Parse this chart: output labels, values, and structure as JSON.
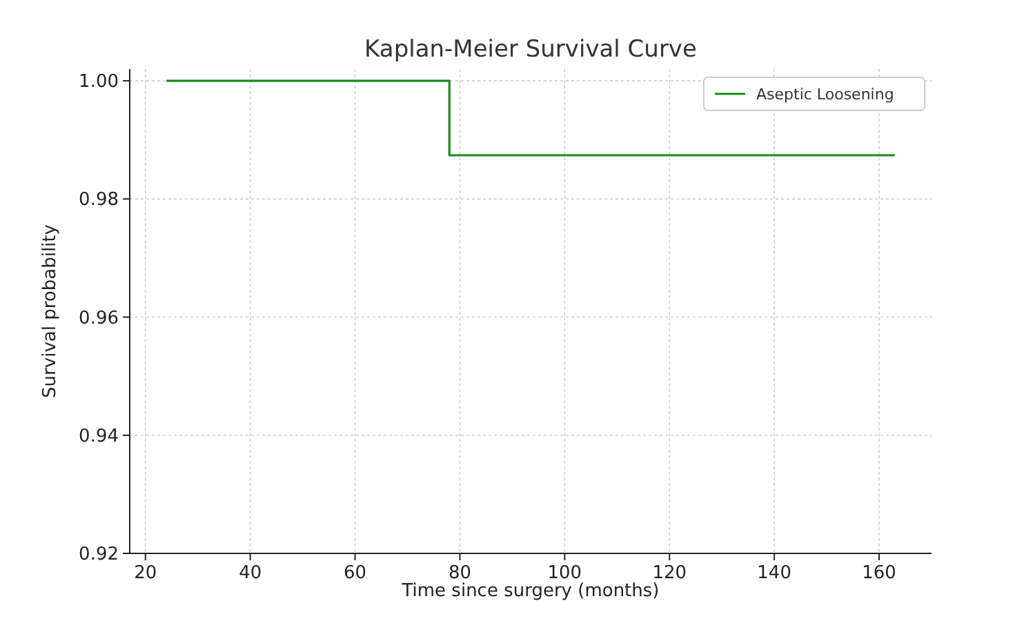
{
  "chart_data": {
    "type": "step",
    "title": "Kaplan-Meier Survival Curve",
    "xlabel": "Time since surgery (months)",
    "ylabel": "Survival probability",
    "x": [
      24,
      78,
      163
    ],
    "series": [
      {
        "name": "Aseptic Loosening",
        "color": "#1a8a1a",
        "values": [
          1.0,
          0.9874,
          0.9874
        ]
      }
    ],
    "xlim": [
      17,
      170
    ],
    "xticks": [
      20,
      40,
      60,
      80,
      100,
      120,
      140,
      160
    ],
    "ylim": [
      0.92,
      1.002
    ],
    "yticks": [
      {
        "value": 0.92,
        "label": "0.92"
      },
      {
        "value": 0.94,
        "label": "0.94"
      },
      {
        "value": 0.96,
        "label": "0.96"
      },
      {
        "value": 0.98,
        "label": "0.98"
      },
      {
        "value": 1.0,
        "label": "1.00"
      }
    ],
    "grid": true,
    "legend": "top right",
    "line_style": "solid"
  }
}
